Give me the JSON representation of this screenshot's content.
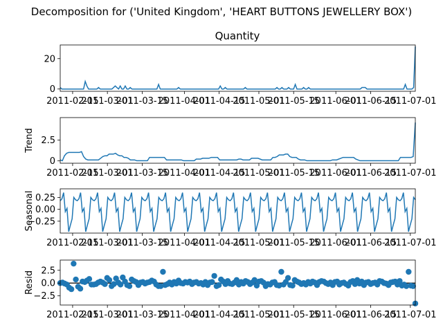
{
  "figure": {
    "suptitle": "Decomposition for ('United Kingdom', 'HEART BUTTONS JEWELLERY BOX')",
    "line_color": "#1f77b4",
    "zero_line_color": "#000000"
  },
  "chart_data": [
    {
      "type": "line",
      "panel": "observed",
      "title": "Quantity",
      "ylabel": "",
      "ylim": [
        -1.5,
        29
      ],
      "yticks": [
        0,
        20
      ],
      "ytick_labels": [
        "0",
        "20"
      ],
      "xticks": [
        "2011-02-15",
        "2011-03-01",
        "2011-03-15",
        "2011-04-01",
        "2011-04-15",
        "2011-05-01",
        "2011-05-15",
        "2011-06-01",
        "2011-06-15",
        "2011-07-01"
      ],
      "x_start": "2011-02-10",
      "x_end": "2011-07-03",
      "values": [
        1,
        0,
        0,
        0,
        0,
        0,
        0,
        0,
        0,
        0,
        0,
        0,
        0,
        0,
        0,
        5,
        2,
        0,
        0,
        0,
        0,
        0,
        0,
        1,
        0,
        0,
        0,
        0,
        0,
        0,
        0,
        0,
        1,
        2,
        1,
        0,
        2,
        0,
        0,
        2,
        0,
        0,
        1,
        0,
        0,
        0,
        0,
        0,
        0,
        0,
        0,
        0,
        0,
        0,
        0,
        0,
        0,
        0,
        0,
        3,
        0,
        0,
        0,
        0,
        0,
        0,
        0,
        0,
        0,
        0,
        0,
        1,
        0,
        0,
        0,
        0,
        0,
        0,
        0,
        0,
        0,
        0,
        0,
        0,
        0,
        0,
        0,
        0,
        0,
        0,
        0,
        0,
        0,
        0,
        0,
        0,
        2,
        0,
        0,
        1,
        0,
        0,
        0,
        0,
        0,
        0,
        0,
        0,
        0,
        0,
        0,
        1,
        0,
        0,
        0,
        0,
        0,
        0,
        0,
        0,
        0,
        0,
        0,
        0,
        0,
        0,
        0,
        0,
        0,
        0,
        1,
        0,
        0,
        1,
        0,
        0,
        0,
        1,
        0,
        0,
        0,
        3,
        0,
        0,
        0,
        0,
        1,
        0,
        0,
        1,
        0,
        0,
        0,
        0,
        0,
        0,
        0,
        0,
        0,
        0,
        0,
        0,
        0,
        0,
        0,
        0,
        0,
        0,
        0,
        0,
        0,
        0,
        0,
        0,
        0,
        0,
        0,
        0,
        0,
        0,
        0,
        1,
        1,
        1,
        0,
        0,
        0,
        0,
        0,
        0,
        0,
        0,
        0,
        0,
        0,
        0,
        0,
        0,
        0,
        0,
        0,
        0,
        0,
        0,
        0,
        0,
        0,
        3,
        0,
        0,
        0,
        0,
        1,
        28
      ]
    },
    {
      "type": "line",
      "panel": "trend",
      "title": "",
      "ylabel": "Trend",
      "ylim": [
        -0.3,
        5.2
      ],
      "yticks": [
        0,
        2.5
      ],
      "ytick_labels": [
        "0",
        "2.5"
      ],
      "xticks": [
        "2011-02-15",
        "2011-03-01",
        "2011-03-15",
        "2011-04-01",
        "2011-04-15",
        "2011-05-01",
        "2011-05-15",
        "2011-06-01",
        "2011-06-15",
        "2011-07-01"
      ],
      "x_start": "2011-02-10",
      "x_end": "2011-07-03",
      "values": [
        0.1,
        0.0,
        0.6,
        0.9,
        1.0,
        1.0,
        1.0,
        1.0,
        1.0,
        1.0,
        1.1,
        0.5,
        0.2,
        0.1,
        0.1,
        0.1,
        0.1,
        0.1,
        0.1,
        0.3,
        0.5,
        0.6,
        0.6,
        0.8,
        0.8,
        0.8,
        0.9,
        0.7,
        0.6,
        0.6,
        0.4,
        0.4,
        0.3,
        0.1,
        0.1,
        0.1,
        0.0,
        0.0,
        0.0,
        0.0,
        0.0,
        0.0,
        0.4,
        0.4,
        0.4,
        0.4,
        0.4,
        0.4,
        0.4,
        0.4,
        0.1,
        0.1,
        0.1,
        0.1,
        0.1,
        0.1,
        0.1,
        0.1,
        0.0,
        0.0,
        0.0,
        0.0,
        0.0,
        0.0,
        0.2,
        0.2,
        0.2,
        0.3,
        0.3,
        0.3,
        0.3,
        0.4,
        0.4,
        0.4,
        0.4,
        0.1,
        0.1,
        0.1,
        0.1,
        0.1,
        0.1,
        0.1,
        0.1,
        0.1,
        0.2,
        0.2,
        0.1,
        0.1,
        0.1,
        0.1,
        0.3,
        0.3,
        0.3,
        0.3,
        0.2,
        0.1,
        0.1,
        0.1,
        0.1,
        0.1,
        0.4,
        0.4,
        0.5,
        0.7,
        0.7,
        0.7,
        0.8,
        0.8,
        0.5,
        0.4,
        0.4,
        0.4,
        0.2,
        0.1,
        0.1,
        0.1,
        0.0,
        0.0,
        0.0,
        0.0,
        0.0,
        0.0,
        0.0,
        0.0,
        0.0,
        0.0,
        0.0,
        0.0,
        0.1,
        0.1,
        0.1,
        0.2,
        0.3,
        0.4,
        0.4,
        0.4,
        0.4,
        0.4,
        0.4,
        0.2,
        0.1,
        0.0,
        0.0,
        0.0,
        0.0,
        0.0,
        0.0,
        0.0,
        0.0,
        0.0,
        0.0,
        0.0,
        0.0,
        0.0,
        0.0,
        0.0,
        0.0,
        0.0,
        0.0,
        0.0,
        0.4,
        0.4,
        0.4,
        0.4,
        0.4,
        0.4,
        0.5,
        4.6
      ]
    },
    {
      "type": "line",
      "panel": "seasonal",
      "title": "",
      "ylabel": "Seasonal",
      "ylim": [
        -0.5,
        0.43
      ],
      "yticks": [
        0.25,
        0.0,
        -0.25
      ],
      "ytick_labels": [
        "0.25",
        "0.00",
        "−0.25"
      ],
      "xticks": [
        "2011-02-15",
        "2011-03-01",
        "2011-03-15",
        "2011-04-01",
        "2011-04-15",
        "2011-05-01",
        "2011-05-15",
        "2011-06-01",
        "2011-06-15",
        "2011-07-01"
      ],
      "x_start": "2011-02-10",
      "x_end": "2011-07-03",
      "period_pattern": [
        0.18,
        0.22,
        0.35,
        -0.05,
        0.02,
        -0.47,
        -0.33,
        -0.2,
        0.25,
        0.2
      ],
      "periods": 21
    },
    {
      "type": "scatter",
      "panel": "resid",
      "title": "",
      "ylabel": "Resid",
      "ylim": [
        -4.3,
        4.5
      ],
      "yticks": [
        2.5,
        0.0,
        -2.5
      ],
      "ytick_labels": [
        "2.5",
        "0.0",
        "−2.5"
      ],
      "xticks": [
        "2011-02-15",
        "2011-03-01",
        "2011-03-15",
        "2011-04-01",
        "2011-04-15",
        "2011-05-01",
        "2011-05-15",
        "2011-06-01",
        "2011-06-15",
        "2011-07-01"
      ],
      "x_start": "2011-02-10",
      "x_end": "2011-07-03",
      "values": [
        0.0,
        0.1,
        -0.1,
        -0.3,
        -0.9,
        -1.2,
        3.8,
        0.7,
        -0.7,
        -1.1,
        0.3,
        0.2,
        0.5,
        0.8,
        -0.3,
        -0.3,
        -0.2,
        0.1,
        0.3,
        0.1,
        -0.2,
        1.0,
        0.6,
        -0.6,
        -0.2,
        0.9,
        0.1,
        -0.3,
        1.1,
        0.3,
        -0.4,
        -0.6,
        0.7,
        0.4,
        0.2,
        -0.4,
        0.1,
        0.2,
        -0.1,
        0.1,
        0.2,
        0.5,
        0.3,
        -0.3,
        -0.6,
        -0.6,
        2.2,
        -0.4,
        -0.2,
        0.1,
        -0.3,
        0.2,
        -0.1,
        0.5,
        0.0,
        -0.1,
        0.2,
        0.1,
        0.3,
        -0.2,
        0.1,
        0.2,
        -0.1,
        0.0,
        -0.3,
        0.2,
        -0.4,
        0.1,
        0.2,
        1.4,
        -0.6,
        -0.4,
        0.7,
        0.3,
        -0.2,
        0.4,
        -0.1,
        -0.2,
        0.1,
        0.6,
        -0.3,
        0.2,
        -0.1,
        0.4,
        0.2,
        -0.2,
        0.1,
        0.6,
        -0.5,
        0.3,
        0.4,
        0.1,
        -0.6,
        -0.2,
        -0.3,
        0.1,
        0.2,
        -0.4,
        -0.5,
        2.2,
        -0.3,
        0.2,
        1.0,
        -0.4,
        -0.5,
        0.6,
        0.3,
        0.1,
        -0.2,
        0.0,
        -0.3,
        0.2,
        -0.1,
        0.3,
        0.1,
        -0.4,
        0.2,
        0.4,
        0.3,
        0.0,
        -0.2,
        0.1,
        -0.4,
        0.2,
        0.3,
        -0.3,
        0.0,
        0.1,
        -0.2,
        -0.5,
        0.2,
        0.4,
        -0.2,
        0.6,
        -0.1,
        0.3,
        -0.4,
        0.1,
        0.2,
        -0.2,
        0.0,
        0.1,
        -0.3,
        0.4,
        0.3,
        0.0,
        -0.1,
        -0.4,
        0.1,
        0.2,
        0.3,
        -0.3,
        0.4,
        -0.5,
        -0.3,
        -0.6,
        2.2,
        -0.5,
        -0.6,
        -4.0
      ]
    }
  ]
}
